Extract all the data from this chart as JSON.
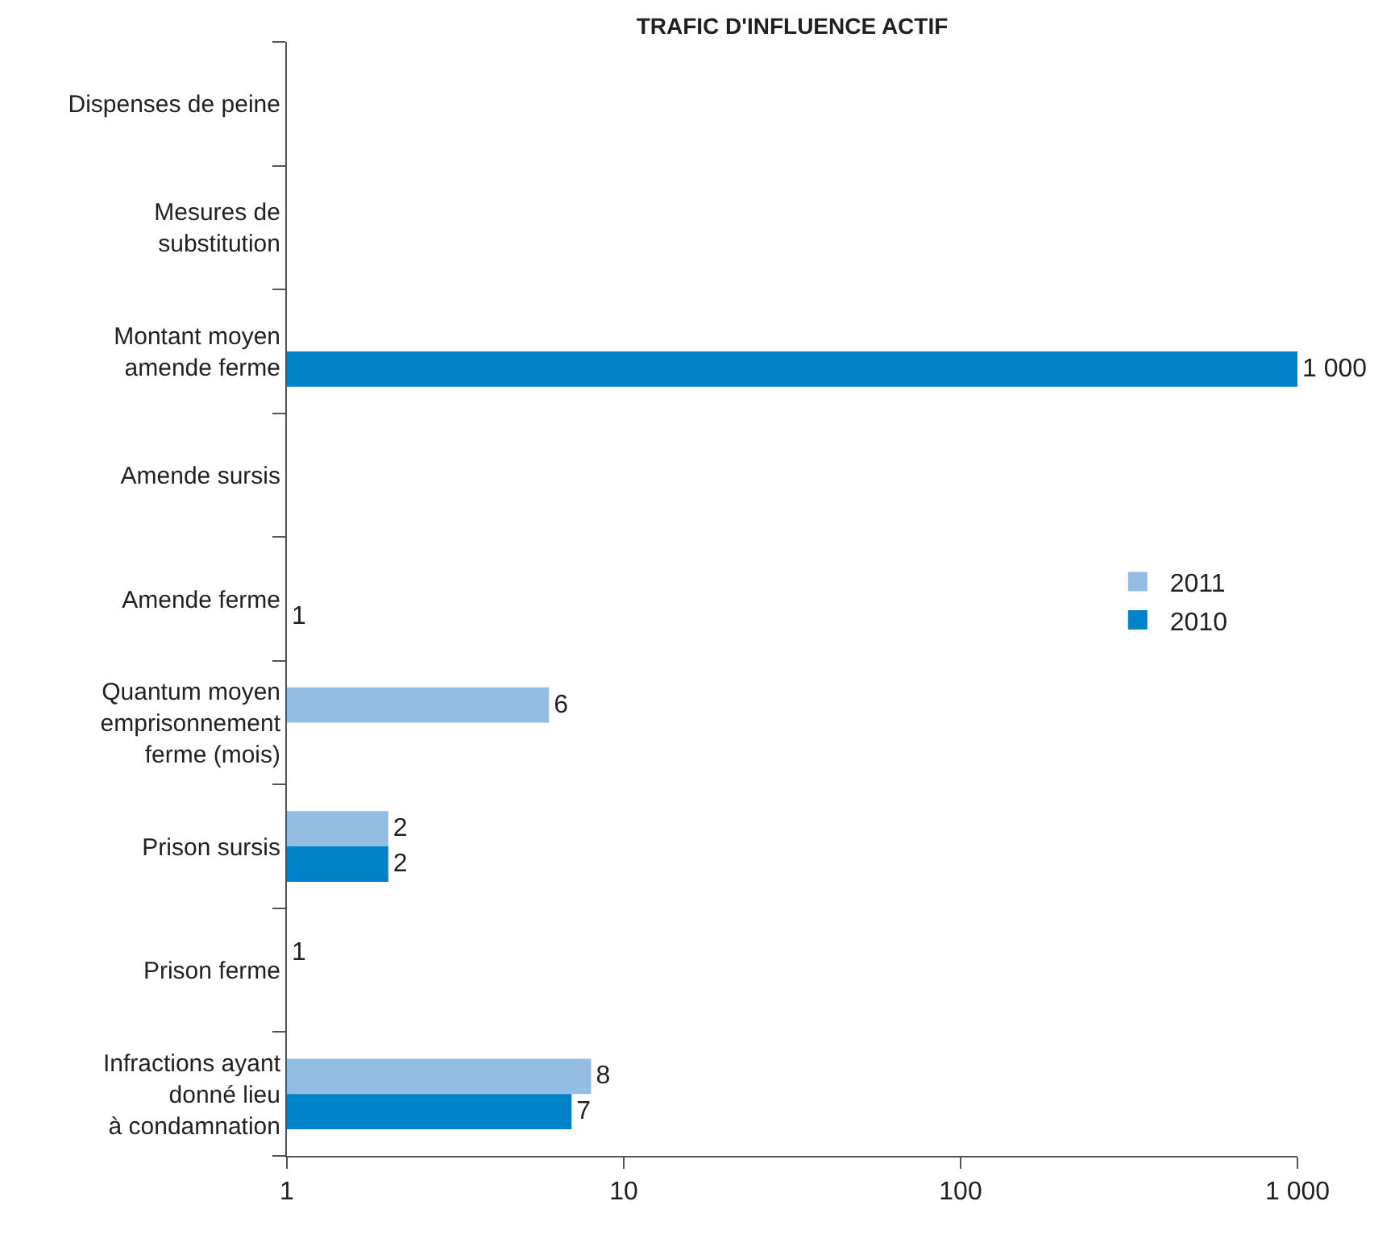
{
  "chart_data": {
    "type": "bar",
    "orientation": "horizontal",
    "title": "TRAFIC D'INFLUENCE ACTIF",
    "categories": [
      "Dispenses de peine",
      "Mesures de\nsubstitution",
      "Montant moyen\namende ferme",
      "Amende sursis",
      "Amende ferme",
      "Quantum moyen\nemprisonnement\nferme (mois)",
      "Prison sursis",
      "Prison ferme",
      "Infractions ayant\ndonné lieu\nà condamnation"
    ],
    "series": [
      {
        "name": "2011",
        "color": "#93bde3",
        "values": [
          null,
          null,
          null,
          null,
          null,
          6,
          2,
          1,
          8
        ],
        "value_labels": [
          null,
          null,
          null,
          null,
          null,
          "6",
          "2",
          "1",
          "8"
        ]
      },
      {
        "name": "2010",
        "color": "#0082c8",
        "values": [
          null,
          null,
          1000,
          null,
          1,
          null,
          2,
          null,
          7
        ],
        "value_labels": [
          null,
          null,
          "1 000",
          null,
          "1",
          null,
          "2",
          null,
          "7"
        ]
      }
    ],
    "log": "x",
    "xlim": [
      1,
      1000
    ],
    "xticks": [
      1,
      10,
      100,
      {
        "value": 1000,
        "label": "1 000"
      }
    ],
    "legend": "right"
  }
}
